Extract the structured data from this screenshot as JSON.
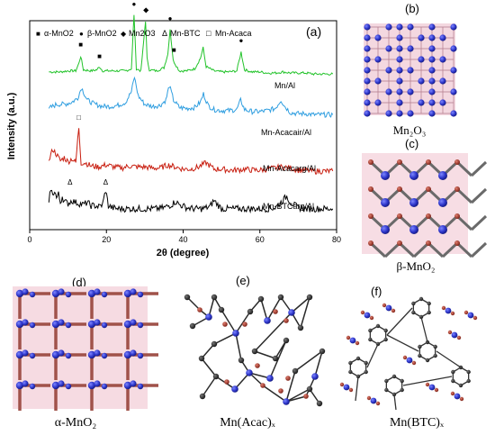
{
  "panels": {
    "a": "(a)",
    "b": "(b)",
    "c": "(c)",
    "d": "(d)",
    "e": "(e)",
    "f": "(f)"
  },
  "captions": {
    "b": "Mn₂O₃",
    "c": "β-MnO₂",
    "d": "α-MnO₂",
    "e": "Mn(Acac)ₓ",
    "f": "Mn(BTC)ₓ"
  },
  "legend": [
    {
      "symbol": "■",
      "label": "α-MnO2"
    },
    {
      "symbol": "●",
      "label": "β-MnO2"
    },
    {
      "symbol": "◆",
      "label": "Mn2O3"
    },
    {
      "symbol": "Δ",
      "label": "Mn-BTC"
    },
    {
      "symbol": "□",
      "label": "Mn-Acaca"
    }
  ],
  "colors": {
    "Mn/Al": "#22c32a",
    "Mn-Acacair/Al": "#2f9ee0",
    "Mn-Acacarg/Al": "#c81e10",
    "Mn-BTCarg/Al": "#000000",
    "mn_atom": "#2c34c8",
    "o_atom": "#a8322a",
    "c_atom": "#1a1a1a",
    "glow": "#f2a6b6"
  },
  "chart_data": {
    "type": "line",
    "xlabel": "2θ (degree)",
    "ylabel": "Intensity (a.u.)",
    "xlim": [
      0,
      80
    ],
    "xticks": [
      0,
      20,
      40,
      60,
      80
    ],
    "ylim": [
      0,
      10
    ],
    "grid": false,
    "series": [
      {
        "name": "Mn/Al",
        "x": [
          5,
          8,
          10,
          12,
          12.8,
          13.3,
          14,
          16,
          17.5,
          18.2,
          19,
          22,
          25,
          26.5,
          27.2,
          27.8,
          29,
          30.2,
          30.6,
          31.2,
          33,
          35,
          36,
          36.6,
          37.4,
          39,
          41,
          43,
          44.5,
          45.2,
          46,
          48,
          50,
          52,
          54,
          55.1,
          56,
          58,
          60,
          62,
          64,
          66,
          68,
          70,
          72,
          74,
          76,
          78,
          79
        ],
        "y": [
          7.55,
          7.55,
          7.6,
          7.6,
          7.95,
          8.3,
          7.65,
          7.6,
          7.65,
          7.8,
          7.6,
          7.6,
          7.6,
          7.7,
          10.3,
          7.7,
          7.6,
          10.0,
          8.2,
          7.65,
          7.6,
          7.75,
          8.4,
          9.6,
          8.1,
          7.6,
          7.6,
          7.7,
          8.2,
          8.7,
          7.8,
          7.6,
          7.55,
          7.55,
          7.6,
          8.5,
          7.65,
          7.55,
          7.55,
          7.5,
          7.5,
          7.55,
          7.5,
          7.5,
          7.5,
          7.45,
          7.45,
          7.45,
          7.45
        ]
      },
      {
        "name": "Mn-Acacair/Al",
        "x": [
          5,
          7,
          9,
          11,
          12.5,
          13.5,
          15,
          17,
          19,
          21,
          23,
          25,
          26.5,
          27.3,
          28.3,
          30,
          32,
          34,
          35.5,
          36.4,
          37.5,
          39,
          41,
          43,
          44.5,
          45.3,
          46.5,
          48,
          50,
          52,
          54,
          55,
          56,
          58,
          60,
          62,
          64,
          65.5,
          66.5,
          68,
          70,
          72,
          74,
          76,
          78,
          79
        ],
        "y": [
          5.8,
          6.0,
          6.0,
          6.1,
          6.3,
          6.8,
          6.2,
          6.0,
          5.9,
          5.9,
          5.95,
          6.1,
          6.6,
          7.3,
          6.4,
          6.0,
          5.9,
          5.95,
          6.2,
          6.9,
          6.2,
          5.85,
          5.8,
          5.85,
          6.1,
          6.5,
          5.95,
          5.75,
          5.7,
          5.7,
          5.75,
          6.2,
          5.75,
          5.65,
          5.65,
          5.7,
          5.8,
          6.2,
          5.9,
          5.6,
          5.55,
          5.55,
          5.5,
          5.5,
          5.5,
          5.5
        ]
      },
      {
        "name": "Mn-Acacarg/Al",
        "x": [
          5,
          6,
          7,
          8,
          9,
          10,
          11,
          12,
          12.8,
          13.4,
          14.5,
          16,
          18,
          20,
          22,
          24,
          26,
          28,
          30,
          32,
          34,
          36,
          38,
          40,
          42,
          44,
          46,
          48,
          50,
          52,
          54,
          56,
          58,
          60,
          62,
          64,
          66,
          68,
          70,
          72,
          74,
          76,
          78,
          79
        ],
        "y": [
          3.3,
          3.85,
          3.6,
          3.3,
          3.45,
          3.25,
          3.4,
          3.2,
          4.9,
          3.2,
          3.2,
          3.05,
          3.0,
          3.1,
          3.0,
          2.95,
          3.05,
          3.0,
          3.0,
          2.95,
          2.95,
          3.1,
          3.0,
          2.9,
          2.9,
          3.0,
          3.2,
          2.9,
          2.9,
          2.85,
          2.85,
          2.9,
          2.85,
          2.85,
          2.9,
          2.95,
          3.0,
          2.95,
          2.85,
          2.85,
          2.8,
          2.8,
          2.8,
          2.8
        ]
      },
      {
        "name": "Mn-BTCarg/Al",
        "x": [
          5,
          5.5,
          6,
          6.5,
          7,
          7.5,
          8,
          8.5,
          9,
          10,
          11,
          12,
          13,
          14,
          15,
          16,
          17,
          18,
          19,
          19.8,
          20.5,
          21.5,
          23,
          25,
          27,
          29,
          31,
          33,
          35,
          37,
          38,
          39,
          41,
          43,
          45,
          47,
          48,
          50,
          52,
          54,
          56,
          58,
          60,
          62,
          64,
          66,
          67,
          68,
          70,
          72,
          74,
          76,
          78,
          79
        ],
        "y": [
          1.3,
          2.0,
          1.6,
          1.9,
          1.5,
          1.7,
          1.3,
          1.6,
          1.35,
          1.25,
          1.4,
          1.3,
          1.25,
          1.2,
          1.3,
          1.15,
          1.15,
          1.1,
          1.2,
          1.9,
          1.15,
          1.05,
          1.0,
          1.0,
          1.0,
          1.0,
          1.0,
          1.0,
          1.05,
          1.2,
          1.35,
          1.2,
          1.05,
          1.0,
          1.0,
          1.1,
          1.4,
          1.0,
          1.0,
          1.0,
          1.0,
          1.0,
          1.0,
          1.0,
          1.05,
          1.4,
          1.6,
          1.3,
          1.05,
          1.0,
          1.0,
          1.0,
          1.0,
          1.0
        ]
      }
    ],
    "annotations": [
      {
        "symbol": "■",
        "x": 13.3,
        "y": 8.75
      },
      {
        "symbol": "■",
        "x": 18.2,
        "y": 8.2
      },
      {
        "symbol": "●",
        "x": 27.2,
        "y": 10.7
      },
      {
        "symbol": "◆",
        "x": 30.3,
        "y": 10.4
      },
      {
        "symbol": "●",
        "x": 36.6,
        "y": 10.0
      },
      {
        "symbol": "■",
        "x": 37.6,
        "y": 8.5
      },
      {
        "symbol": "●",
        "x": 55.1,
        "y": 8.95
      },
      {
        "symbol": "□",
        "x": 12.8,
        "y": 5.25
      },
      {
        "symbol": "Δ",
        "x": 10.5,
        "y": 2.15
      },
      {
        "symbol": "Δ",
        "x": 19.8,
        "y": 2.15
      }
    ]
  }
}
